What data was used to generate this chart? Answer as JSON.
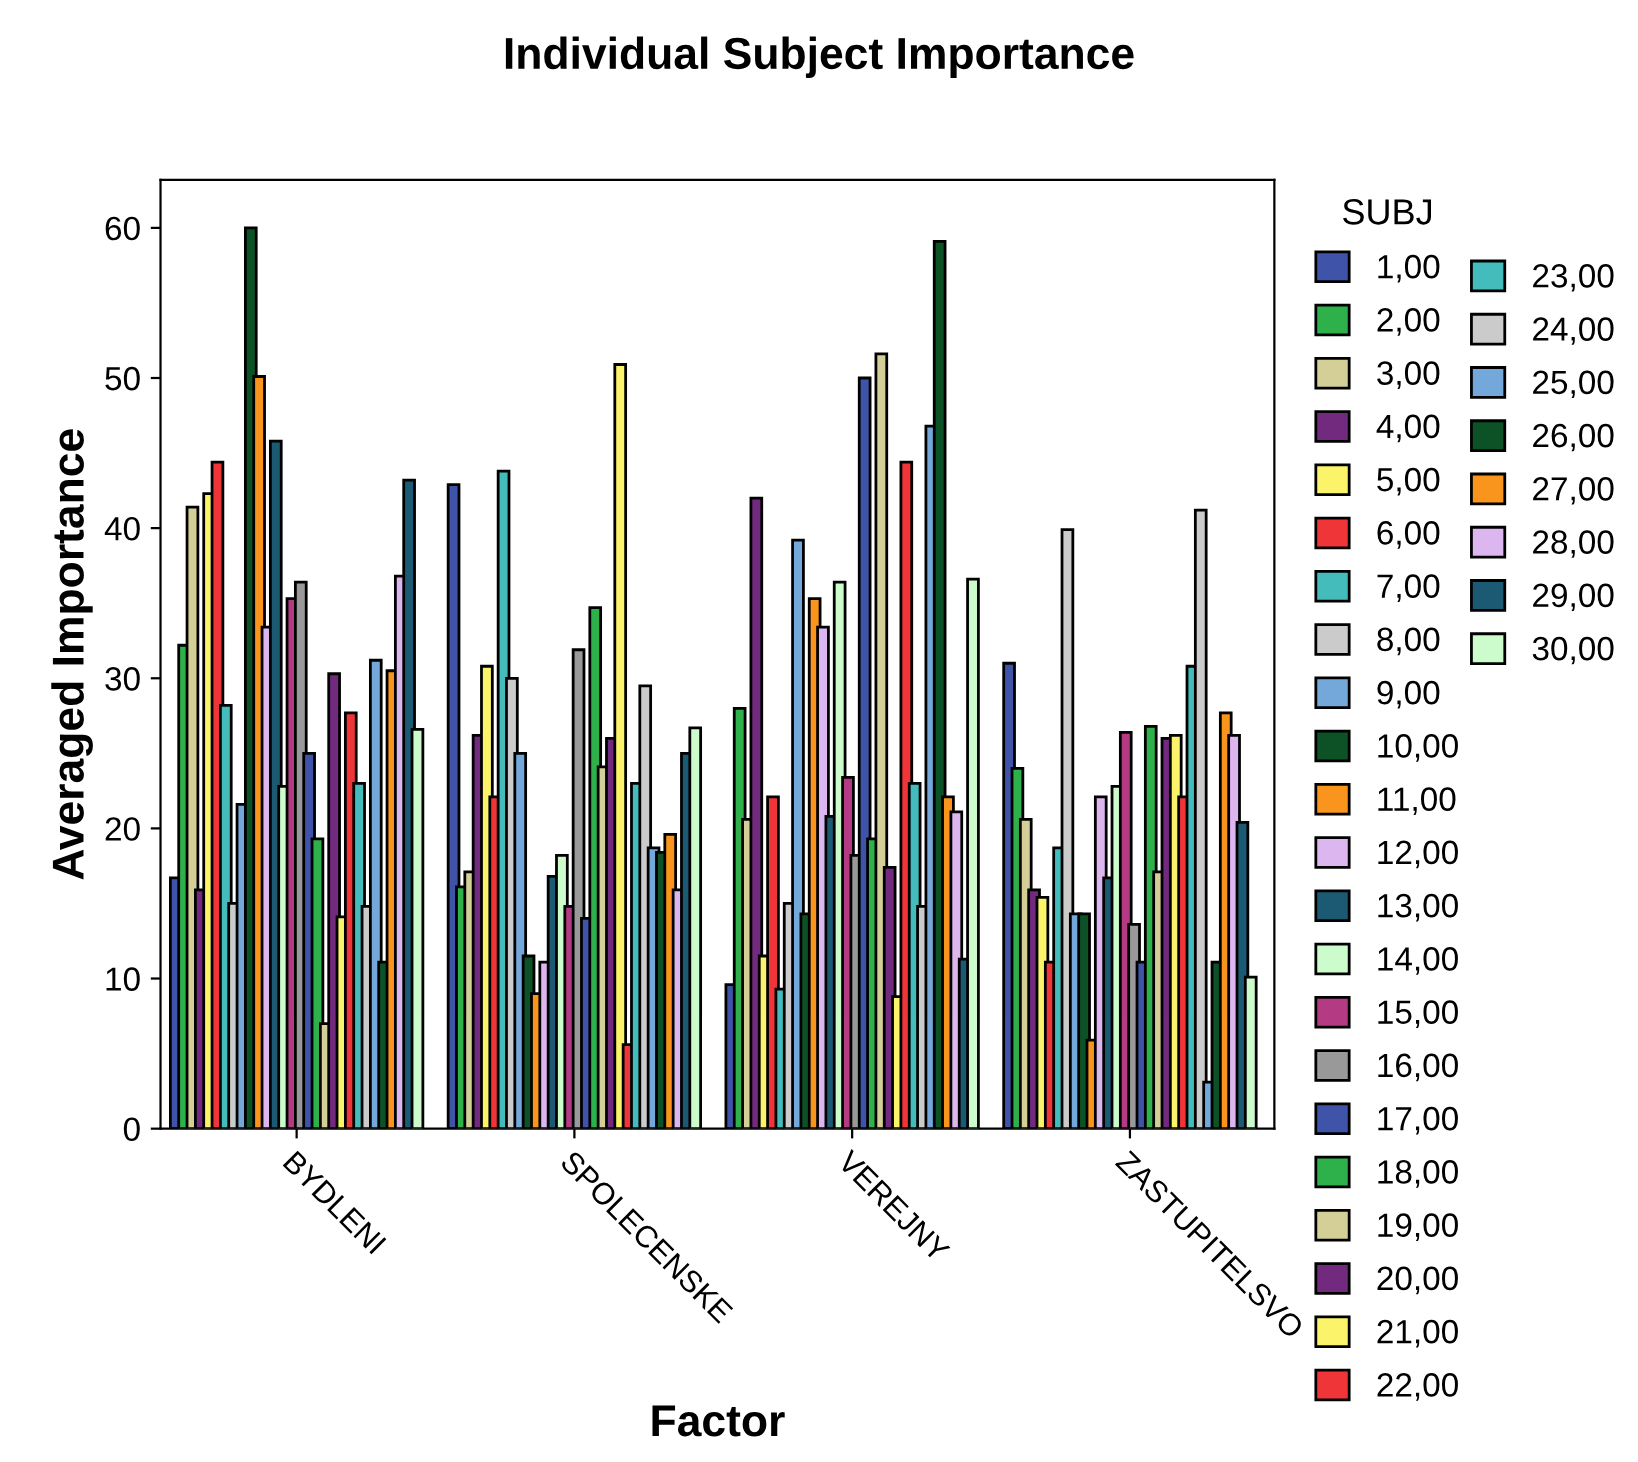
{
  "chart_data": {
    "type": "bar",
    "title": "Individual Subject Importance",
    "xlabel": "Factor",
    "ylabel": "Averaged Importance",
    "legend_title": "SUBJ",
    "legend": "right",
    "categories": [
      "BYDLENI",
      "SPOLECENSKE",
      "VEREJNY",
      "ZASTUPITELSVO"
    ],
    "ylim": [
      0,
      63.2
    ],
    "yticks": [
      0,
      10,
      20,
      30,
      40,
      50,
      60
    ],
    "series": [
      {
        "name": "1,00",
        "color": "#3f54a8",
        "values": [
          16.7,
          42.9,
          9.6,
          31.0
        ]
      },
      {
        "name": "2,00",
        "color": "#2eb14a",
        "values": [
          32.2,
          16.1,
          28.0,
          24.0
        ]
      },
      {
        "name": "3,00",
        "color": "#d4cf96",
        "values": [
          41.4,
          17.1,
          20.6,
          20.6
        ]
      },
      {
        "name": "4,00",
        "color": "#722a7f",
        "values": [
          15.9,
          26.2,
          42.0,
          15.9
        ]
      },
      {
        "name": "5,00",
        "color": "#fbf46a",
        "values": [
          42.3,
          30.8,
          11.5,
          15.4
        ]
      },
      {
        "name": "6,00",
        "color": "#ef3538",
        "values": [
          44.4,
          22.1,
          22.1,
          11.1
        ]
      },
      {
        "name": "7,00",
        "color": "#44bcbc",
        "values": [
          28.2,
          43.8,
          9.3,
          18.7
        ]
      },
      {
        "name": "8,00",
        "color": "#cbcbcb",
        "values": [
          15.0,
          30.0,
          15.0,
          39.9
        ]
      },
      {
        "name": "9,00",
        "color": "#74a8da",
        "values": [
          21.6,
          25.0,
          39.2,
          14.3
        ]
      },
      {
        "name": "10,00",
        "color": "#0d5127",
        "values": [
          60.0,
          11.5,
          14.3,
          14.3
        ]
      },
      {
        "name": "11,00",
        "color": "#f9951c",
        "values": [
          50.1,
          9.0,
          35.3,
          5.9
        ]
      },
      {
        "name": "12,00",
        "color": "#dcb7ef",
        "values": [
          33.4,
          11.1,
          33.4,
          22.1
        ]
      },
      {
        "name": "13,00",
        "color": "#1c5a73",
        "values": [
          45.8,
          16.8,
          20.8,
          16.7
        ]
      },
      {
        "name": "14,00",
        "color": "#ccfccc",
        "values": [
          22.8,
          18.2,
          36.4,
          22.8
        ]
      },
      {
        "name": "15,00",
        "color": "#b43b83",
        "values": [
          35.3,
          14.8,
          23.4,
          26.4
        ]
      },
      {
        "name": "16,00",
        "color": "#999999",
        "values": [
          36.4,
          31.9,
          18.2,
          13.6
        ]
      },
      {
        "name": "17,00",
        "color": "#3f54a8",
        "values": [
          25.0,
          14.0,
          50.0,
          11.1
        ]
      },
      {
        "name": "18,00",
        "color": "#2eb14a",
        "values": [
          19.3,
          34.7,
          19.3,
          26.8
        ]
      },
      {
        "name": "19,00",
        "color": "#d4cf96",
        "values": [
          7.0,
          24.1,
          51.6,
          17.1
        ]
      },
      {
        "name": "20,00",
        "color": "#722a7f",
        "values": [
          30.3,
          26.0,
          17.4,
          26.0
        ]
      },
      {
        "name": "21,00",
        "color": "#fbf46a",
        "values": [
          14.1,
          50.9,
          8.8,
          26.2
        ]
      },
      {
        "name": "22,00",
        "color": "#ef3538",
        "values": [
          27.7,
          5.6,
          44.4,
          22.1
        ]
      },
      {
        "name": "23,00",
        "color": "#44bcbc",
        "values": [
          23.0,
          23.0,
          23.0,
          30.8
        ]
      },
      {
        "name": "24,00",
        "color": "#cbcbcb",
        "values": [
          14.8,
          29.5,
          14.8,
          41.2
        ]
      },
      {
        "name": "25,00",
        "color": "#74a8da",
        "values": [
          31.2,
          18.7,
          46.8,
          3.1
        ]
      },
      {
        "name": "26,00",
        "color": "#0d5127",
        "values": [
          11.1,
          18.4,
          59.1,
          11.1
        ]
      },
      {
        "name": "27,00",
        "color": "#f9951c",
        "values": [
          30.5,
          19.6,
          22.1,
          27.7
        ]
      },
      {
        "name": "28,00",
        "color": "#dcb7ef",
        "values": [
          36.8,
          15.9,
          21.1,
          26.2
        ]
      },
      {
        "name": "29,00",
        "color": "#1c5a73",
        "values": [
          43.2,
          25.0,
          11.3,
          20.4
        ]
      },
      {
        "name": "30,00",
        "color": "#ccfccc",
        "values": [
          26.6,
          26.7,
          36.6,
          10.1
        ]
      }
    ]
  }
}
